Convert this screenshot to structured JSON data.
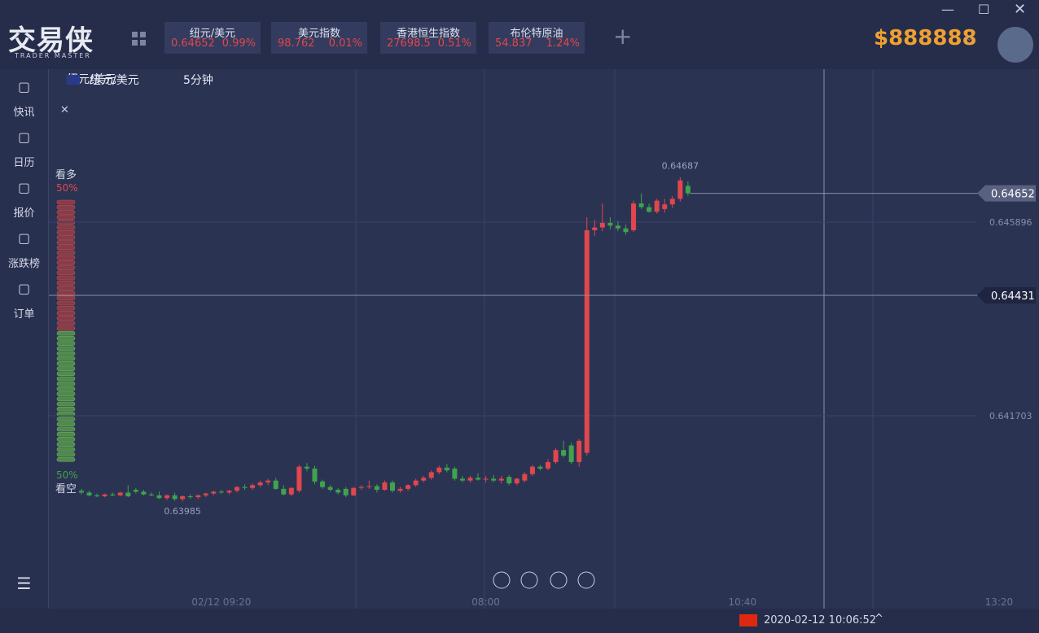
{
  "app": {
    "logo": "交易侠",
    "logo_sub": "TRADER MASTER",
    "tickers": [
      {
        "name": "纽元/美元",
        "price": "0.64652",
        "change": "0.99%"
      },
      {
        "name": "美元指数",
        "price": "98.762",
        "change": "0.01%"
      },
      {
        "name": "香港恒生指数",
        "price": "27698.5",
        "change": "0.51%"
      },
      {
        "name": "布伦特原油",
        "price": "54.837",
        "change": "1.24%"
      }
    ],
    "balance": "$888888"
  },
  "sidebar": {
    "items": [
      "快讯",
      "日历",
      "报价",
      "涨跌榜",
      "订单"
    ]
  },
  "chart_header": {
    "symbol": "纽元/美元",
    "interval": "5分钟"
  },
  "sentiment": {
    "bull_label": "看多",
    "bull_pct": "50%",
    "bear_pct": "50%",
    "bear_label": "看空"
  },
  "chart_data": {
    "type": "candlestick",
    "up_color": "#e0474c",
    "down_color": "#3fa34d",
    "ylim": [
      0.637528,
      0.649208
    ],
    "yticks": [
      0.645896,
      0.641703
    ],
    "current_price": 0.64652,
    "crosshair_price": 0.64431,
    "high_label": 0.64687,
    "low_label": 0.63985,
    "categories": [
      null,
      null,
      null,
      null,
      null,
      null,
      null,
      null,
      null,
      null,
      null,
      null,
      null,
      null,
      null,
      null,
      null,
      null,
      "02/12 09:20",
      null,
      null,
      null,
      null,
      null,
      null,
      null,
      null,
      null,
      null,
      null,
      null,
      null,
      null,
      null,
      null,
      null,
      null,
      null,
      null,
      null,
      null,
      null,
      null,
      null,
      null,
      null,
      null,
      null,
      null,
      null,
      null,
      null,
      "08:00",
      null,
      null,
      null,
      null,
      null,
      null,
      null,
      null,
      null,
      null,
      null,
      null,
      null,
      null,
      null,
      null,
      null,
      null,
      null,
      null,
      null,
      null,
      null,
      null,
      null,
      null,
      null,
      null,
      null,
      null,
      null,
      null,
      "10:40",
      null,
      null,
      null,
      null,
      null,
      null,
      null,
      null,
      null,
      null,
      null,
      null,
      null,
      null,
      null,
      null,
      null,
      null,
      null,
      null,
      null,
      null,
      null,
      null,
      null,
      null,
      null,
      null,
      null,
      null,
      null,
      null,
      "13:20"
    ],
    "candles": [
      [
        0.64008,
        0.64012,
        0.64,
        0.64004
      ],
      [
        0.64004,
        0.64008,
        0.63996,
        0.63998
      ],
      [
        0.63998,
        0.64002,
        0.63994,
        0.63996
      ],
      [
        0.63996,
        0.64002,
        0.63994,
        0.64
      ],
      [
        0.64,
        0.64004,
        0.63996,
        0.63998
      ],
      [
        0.63998,
        0.64006,
        0.63996,
        0.64004
      ],
      [
        0.64004,
        0.6402,
        0.63994,
        0.63996
      ],
      [
        0.6401,
        0.64014,
        0.64002,
        0.64006
      ],
      [
        0.64006,
        0.6401,
        0.63998,
        0.64
      ],
      [
        0.64,
        0.64004,
        0.63996,
        0.63998
      ],
      [
        0.63998,
        0.64006,
        0.6399,
        0.63992
      ],
      [
        0.63992,
        0.64,
        0.63988,
        0.63998
      ],
      [
        0.63998,
        0.64004,
        0.63986,
        0.6399
      ],
      [
        0.6399,
        0.63998,
        0.63985,
        0.63996
      ],
      [
        0.63996,
        0.64,
        0.6399,
        0.63994
      ],
      [
        0.63994,
        0.64,
        0.6399,
        0.63998
      ],
      [
        0.63998,
        0.64004,
        0.63994,
        0.64002
      ],
      [
        0.64002,
        0.64008,
        0.63998,
        0.64006
      ],
      [
        0.64006,
        0.6401,
        0.64002,
        0.64004
      ],
      [
        0.64004,
        0.6401,
        0.64,
        0.64008
      ],
      [
        0.64008,
        0.64018,
        0.64004,
        0.64016
      ],
      [
        0.64016,
        0.64022,
        0.6401,
        0.64014
      ],
      [
        0.64014,
        0.64024,
        0.6401,
        0.6402
      ],
      [
        0.6402,
        0.6403,
        0.64016,
        0.64026
      ],
      [
        0.64026,
        0.64034,
        0.6402,
        0.6403
      ],
      [
        0.6403,
        0.64036,
        0.6401,
        0.64012
      ],
      [
        0.64012,
        0.6402,
        0.63998,
        0.64
      ],
      [
        0.64,
        0.64016,
        0.63996,
        0.64014
      ],
      [
        0.64008,
        0.64064,
        0.64004,
        0.6406
      ],
      [
        0.6406,
        0.64068,
        0.6405,
        0.64056
      ],
      [
        0.64056,
        0.64062,
        0.64022,
        0.64028
      ],
      [
        0.64028,
        0.64032,
        0.64012,
        0.64016
      ],
      [
        0.64016,
        0.6402,
        0.64006,
        0.6401
      ],
      [
        0.6401,
        0.64014,
        0.64,
        0.64004
      ],
      [
        0.64012,
        0.64016,
        0.63994,
        0.63998
      ],
      [
        0.63998,
        0.64016,
        0.63996,
        0.64014
      ],
      [
        0.64014,
        0.6402,
        0.6401,
        0.64016
      ],
      [
        0.64016,
        0.6403,
        0.64012,
        0.64018
      ],
      [
        0.64018,
        0.64022,
        0.64004,
        0.6401
      ],
      [
        0.6401,
        0.6403,
        0.64008,
        0.64026
      ],
      [
        0.64026,
        0.6403,
        0.64004,
        0.64008
      ],
      [
        0.64008,
        0.64016,
        0.64004,
        0.64012
      ],
      [
        0.64012,
        0.64022,
        0.64008,
        0.6402
      ],
      [
        0.6402,
        0.64034,
        0.64016,
        0.6403
      ],
      [
        0.6403,
        0.6404,
        0.64026,
        0.64036
      ],
      [
        0.64036,
        0.64052,
        0.64032,
        0.64048
      ],
      [
        0.64048,
        0.64062,
        0.64044,
        0.64058
      ],
      [
        0.64058,
        0.64066,
        0.64048,
        0.64052
      ],
      [
        0.64056,
        0.6406,
        0.6403,
        0.64034
      ],
      [
        0.64034,
        0.6404,
        0.64026,
        0.6403
      ],
      [
        0.6403,
        0.6404,
        0.64026,
        0.64036
      ],
      [
        0.64036,
        0.64046,
        0.6403,
        0.64032
      ],
      [
        0.64032,
        0.6404,
        0.64026,
        0.64034
      ],
      [
        0.64034,
        0.64042,
        0.64026,
        0.6403
      ],
      [
        0.6403,
        0.6404,
        0.64024,
        0.64034
      ],
      [
        0.64038,
        0.64042,
        0.6402,
        0.64024
      ],
      [
        0.64024,
        0.64036,
        0.6402,
        0.64034
      ],
      [
        0.6403,
        0.64048,
        0.64026,
        0.64044
      ],
      [
        0.64044,
        0.64064,
        0.6404,
        0.6406
      ],
      [
        0.6406,
        0.64064,
        0.64052,
        0.64056
      ],
      [
        0.64056,
        0.64076,
        0.64052,
        0.6407
      ],
      [
        0.6407,
        0.641,
        0.64066,
        0.64096
      ],
      [
        0.64096,
        0.64116,
        0.6408,
        0.64084
      ],
      [
        0.64106,
        0.64112,
        0.64066,
        0.6407
      ],
      [
        0.6407,
        0.6412,
        0.6406,
        0.64116
      ],
      [
        0.6409,
        0.646,
        0.64084,
        0.64572
      ],
      [
        0.64572,
        0.64594,
        0.6456,
        0.64578
      ],
      [
        0.64578,
        0.6463,
        0.6457,
        0.64588
      ],
      [
        0.64588,
        0.646,
        0.64574,
        0.64582
      ],
      [
        0.64582,
        0.64592,
        0.6457,
        0.64576
      ],
      [
        0.64576,
        0.64584,
        0.64562,
        0.64568
      ],
      [
        0.64572,
        0.64636,
        0.64568,
        0.6463
      ],
      [
        0.6463,
        0.64652,
        0.64618,
        0.64622
      ],
      [
        0.64622,
        0.6463,
        0.6461,
        0.64612
      ],
      [
        0.64612,
        0.6464,
        0.64608,
        0.64636
      ],
      [
        0.64618,
        0.6464,
        0.6461,
        0.64628
      ],
      [
        0.64628,
        0.64646,
        0.6462,
        0.6464
      ],
      [
        0.6464,
        0.64687,
        0.64634,
        0.6468
      ],
      [
        0.64668,
        0.64678,
        0.64646,
        0.64652
      ],
      null,
      null,
      null,
      null,
      null,
      null,
      null,
      null,
      null,
      null,
      null,
      null,
      null,
      null,
      null,
      null,
      null,
      null,
      null,
      null,
      null,
      null,
      null,
      null,
      null,
      null,
      null,
      null,
      null,
      null,
      null,
      null,
      null,
      null,
      null,
      null,
      null,
      null,
      null,
      null
    ]
  },
  "status_bar": {
    "datetime": "2020-02-12 10:06:52"
  }
}
